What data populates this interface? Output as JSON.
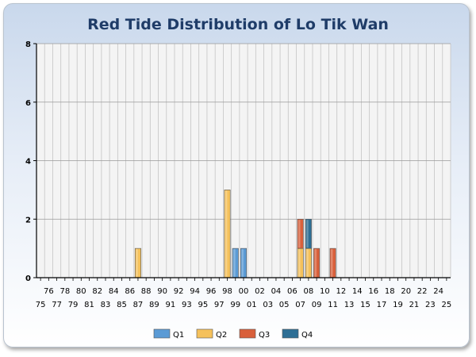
{
  "chart_data": {
    "type": "bar",
    "stacked": true,
    "title": "Red Tide Distribution of Lo Tik Wan",
    "xlabel": "",
    "ylabel": "",
    "ylim": [
      0,
      8
    ],
    "yticks": [
      0,
      2,
      4,
      6,
      8
    ],
    "grid": true,
    "legend_position": "bottom",
    "categories": [
      "75",
      "76",
      "77",
      "78",
      "79",
      "80",
      "81",
      "82",
      "83",
      "84",
      "85",
      "86",
      "87",
      "88",
      "89",
      "90",
      "91",
      "92",
      "93",
      "94",
      "95",
      "96",
      "97",
      "98",
      "99",
      "00",
      "01",
      "02",
      "03",
      "04",
      "05",
      "06",
      "07",
      "08",
      "09",
      "10",
      "11",
      "12",
      "13",
      "14",
      "15",
      "16",
      "17",
      "18",
      "19",
      "20",
      "21",
      "22",
      "23",
      "24",
      "25"
    ],
    "series": [
      {
        "name": "Q1",
        "color": "#5b9bd5",
        "values": [
          0,
          0,
          0,
          0,
          0,
          0,
          0,
          0,
          0,
          0,
          0,
          0,
          0,
          0,
          0,
          0,
          0,
          0,
          0,
          0,
          0,
          0,
          0,
          0,
          1,
          1,
          0,
          0,
          0,
          0,
          0,
          0,
          0,
          0,
          0,
          0,
          0,
          0,
          0,
          0,
          0,
          0,
          0,
          0,
          0,
          0,
          0,
          0,
          0,
          0,
          0
        ]
      },
      {
        "name": "Q2",
        "color": "#f5c15b",
        "values": [
          0,
          0,
          0,
          0,
          0,
          0,
          0,
          0,
          0,
          0,
          0,
          0,
          1,
          0,
          0,
          0,
          0,
          0,
          0,
          0,
          0,
          0,
          0,
          3,
          0,
          0,
          0,
          0,
          0,
          0,
          0,
          0,
          1,
          1,
          0,
          0,
          0,
          0,
          0,
          0,
          0,
          0,
          0,
          0,
          0,
          0,
          0,
          0,
          0,
          0,
          0
        ]
      },
      {
        "name": "Q3",
        "color": "#d9603b",
        "values": [
          0,
          0,
          0,
          0,
          0,
          0,
          0,
          0,
          0,
          0,
          0,
          0,
          0,
          0,
          0,
          0,
          0,
          0,
          0,
          0,
          0,
          0,
          0,
          0,
          0,
          0,
          0,
          0,
          0,
          0,
          0,
          0,
          1,
          0,
          1,
          0,
          1,
          0,
          0,
          0,
          0,
          0,
          0,
          0,
          0,
          0,
          0,
          0,
          0,
          0,
          0
        ]
      },
      {
        "name": "Q4",
        "color": "#2e6f95",
        "values": [
          0,
          0,
          0,
          0,
          0,
          0,
          0,
          0,
          0,
          0,
          0,
          0,
          0,
          0,
          0,
          0,
          0,
          0,
          0,
          0,
          0,
          0,
          0,
          0,
          0,
          0,
          0,
          0,
          0,
          0,
          0,
          0,
          0,
          1,
          0,
          0,
          0,
          0,
          0,
          0,
          0,
          0,
          0,
          0,
          0,
          0,
          0,
          0,
          0,
          0,
          0
        ]
      }
    ]
  }
}
